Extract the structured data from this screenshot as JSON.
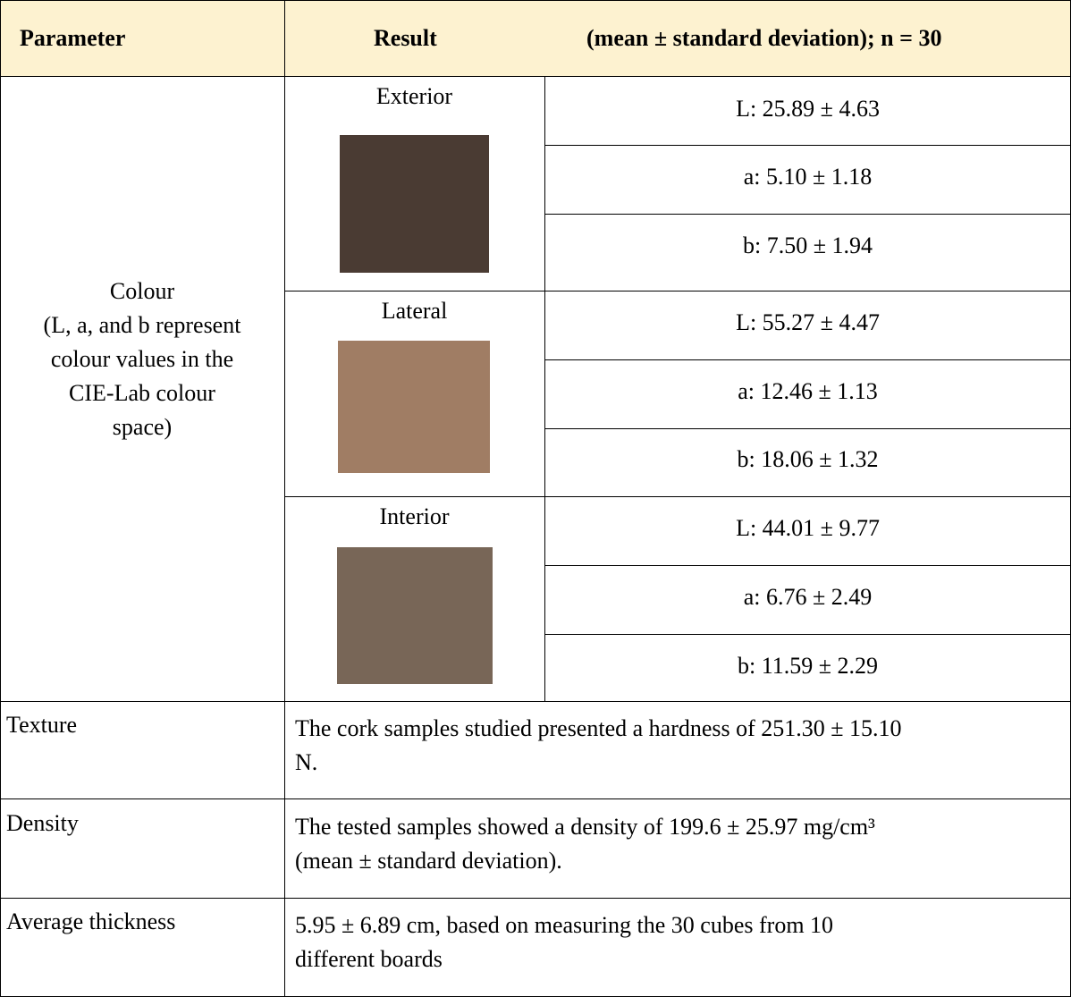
{
  "header": {
    "parameter": "Parameter",
    "result": "Result",
    "stats": "(mean ± standard deviation); n = 30"
  },
  "colour": {
    "label_lines": [
      "Colour",
      "(L, a, and b represent",
      "colour values in the",
      "CIE-Lab colour",
      "space)"
    ],
    "groups": [
      {
        "name": "Exterior",
        "swatch_color": "#4a3b33",
        "values": [
          "L: 25.89 ± 4.63",
          "a: 5.10 ± 1.18",
          "b: 7.50 ± 1.94"
        ]
      },
      {
        "name": "Lateral",
        "swatch_color": "#a07d64",
        "values": [
          "L: 55.27 ± 4.47",
          "a: 12.46 ± 1.13",
          "b: 18.06 ± 1.32"
        ]
      },
      {
        "name": "Interior",
        "swatch_color": "#786657",
        "values": [
          "L: 44.01 ± 9.77",
          "a: 6.76 ± 2.49",
          "b: 11.59 ± 2.29"
        ]
      }
    ]
  },
  "texture": {
    "label": "Texture",
    "lines": [
      "The cork samples studied presented a hardness of 251.30 ± 15.10",
      "N."
    ]
  },
  "density": {
    "label": "Density",
    "lines": [
      "The tested samples showed a density of 199.6 ± 25.97 mg/cm³",
      "(mean ± standard deviation)."
    ]
  },
  "thickness": {
    "label": "Average thickness",
    "lines": [
      "5.95 ± 6.89 cm, based on measuring the 30 cubes from 10",
      "different boards"
    ]
  }
}
